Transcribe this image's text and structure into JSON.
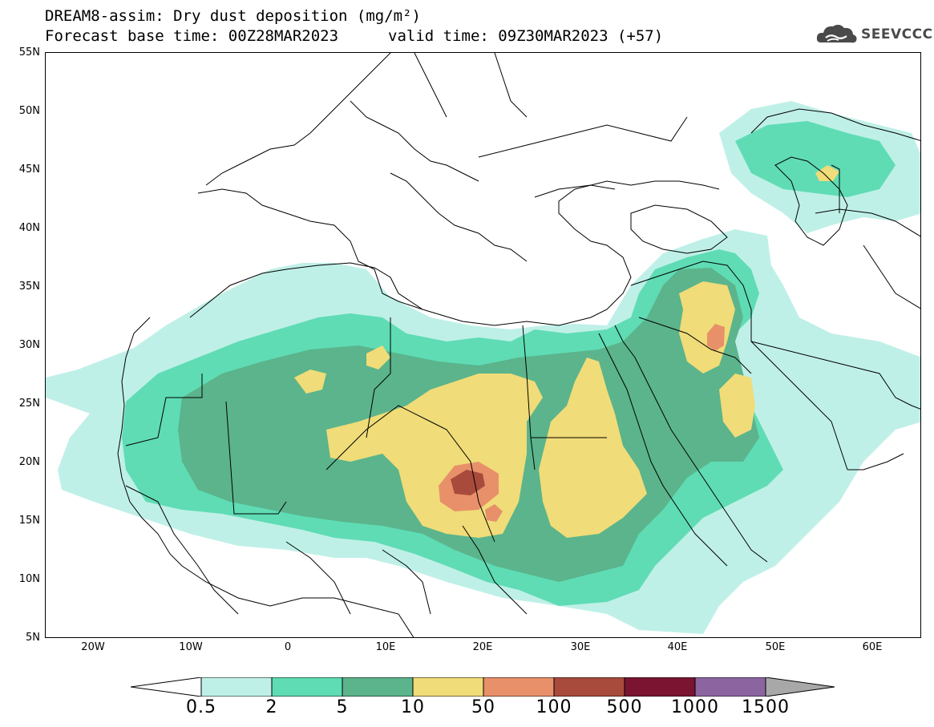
{
  "title": {
    "line1": "DREAM8-assim: Dry dust deposition (mg/m²)",
    "line2": "Forecast base time: 00Z28MAR2023",
    "valid": "valid time: 09Z30MAR2023 (+57)"
  },
  "logo": {
    "text": "SEEVCCC",
    "icon": "cloud-logo-icon"
  },
  "map": {
    "lat_labels": [
      "55N",
      "50N",
      "45N",
      "40N",
      "35N",
      "30N",
      "25N",
      "20N",
      "15N",
      "10N",
      "5N"
    ],
    "lon_labels": [
      "20W",
      "10W",
      "0",
      "10E",
      "20E",
      "30E",
      "40E",
      "50E",
      "60E"
    ],
    "lat_range": [
      5,
      55
    ],
    "lon_range": [
      -25,
      65
    ]
  },
  "legend": {
    "labels": [
      "0.5",
      "2",
      "5",
      "10",
      "50",
      "100",
      "500",
      "1000",
      "1500"
    ],
    "colors": [
      "#ffffff",
      "#bff0e8",
      "#5fdcb4",
      "#5bb48c",
      "#f0dc78",
      "#e8906a",
      "#a84a3c",
      "#7a1430",
      "#8c64a0",
      "#a8a8a8"
    ]
  }
}
